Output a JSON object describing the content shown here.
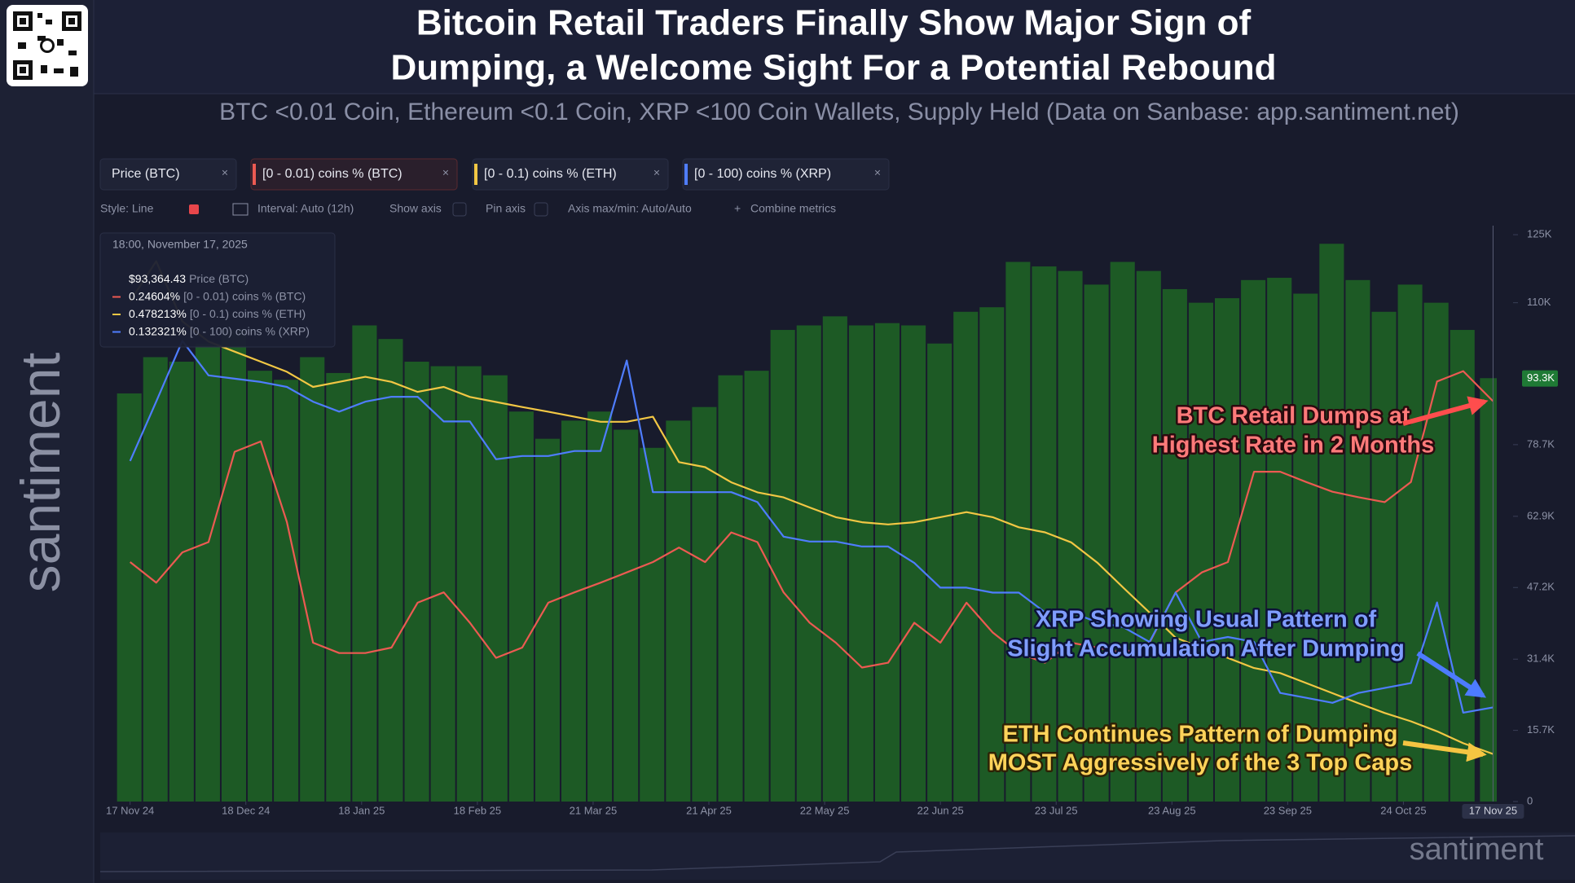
{
  "header": {
    "title_lines": [
      "Bitcoin Retail Traders Finally Show Major Sign of",
      "Dumping, a Welcome Sight For a Potential Rebound"
    ],
    "subtitle": "BTC <0.01 Coin, Ethereum <0.1 Coin, XRP <100 Coin Wallets, Supply Held (Data on Sanbase: app.santiment.net)",
    "watermark": "santiment"
  },
  "toolbar": [
    "Style: Line",
    "Interval: Auto (12h)",
    "Show axis",
    "Pin axis",
    "Axis max/min: Auto/Auto",
    "Combine metrics"
  ],
  "chart_data": {
    "type": "line",
    "x": [
      "2024-11-17",
      "2024-11-24",
      "2024-12-01",
      "2024-12-08",
      "2024-12-15",
      "2024-12-22",
      "2024-12-29",
      "2025-01-05",
      "2025-01-12",
      "2025-01-19",
      "2025-01-26",
      "2025-02-02",
      "2025-02-09",
      "2025-02-16",
      "2025-02-23",
      "2025-03-02",
      "2025-03-09",
      "2025-03-16",
      "2025-03-23",
      "2025-03-30",
      "2025-04-06",
      "2025-04-13",
      "2025-04-20",
      "2025-04-27",
      "2025-05-04",
      "2025-05-11",
      "2025-05-18",
      "2025-05-25",
      "2025-06-01",
      "2025-06-08",
      "2025-06-15",
      "2025-06-22",
      "2025-06-29",
      "2025-07-06",
      "2025-07-13",
      "2025-07-20",
      "2025-07-27",
      "2025-08-03",
      "2025-08-10",
      "2025-08-17",
      "2025-08-24",
      "2025-08-31",
      "2025-09-07",
      "2025-09-14",
      "2025-09-21",
      "2025-09-28",
      "2025-10-05",
      "2025-10-12",
      "2025-10-19",
      "2025-10-26",
      "2025-11-02",
      "2025-11-09",
      "2025-11-17"
    ],
    "xlim": [
      "2024-11-09",
      "2025-11-18"
    ],
    "xticks": [
      {
        "value": "2024-11-17",
        "label": "17 Nov 24"
      },
      {
        "value": "2024-12-18",
        "label": "18 Dec 24"
      },
      {
        "value": "2025-01-18",
        "label": "18 Jan 25"
      },
      {
        "value": "2025-02-18",
        "label": "18 Feb 25"
      },
      {
        "value": "2025-03-21",
        "label": "21 Mar 25"
      },
      {
        "value": "2025-04-21",
        "label": "21 Apr 25"
      },
      {
        "value": "2025-05-22",
        "label": "22 May 25"
      },
      {
        "value": "2025-06-22",
        "label": "22 Jun 25"
      },
      {
        "value": "2025-07-23",
        "label": "23 Jul 25"
      },
      {
        "value": "2025-08-23",
        "label": "23 Aug 25"
      },
      {
        "value": "2025-09-23",
        "label": "23 Sep 25"
      },
      {
        "value": "2025-10-24",
        "label": "24 Oct 25"
      }
    ],
    "cursor": {
      "value": "2025-11-17",
      "label": "17 Nov 25"
    },
    "ylim": [
      0,
      127000
    ],
    "yticks": [
      0,
      {
        "value": 15700,
        "label": "15.7K"
      },
      {
        "value": 31400,
        "label": "31.4K"
      },
      {
        "value": 47200,
        "label": "47.2K"
      },
      {
        "value": 62900,
        "label": "62.9K"
      },
      {
        "value": 78700,
        "label": "78.7K"
      },
      {
        "value": 110000,
        "label": "110K"
      },
      {
        "value": 125000,
        "label": "125K"
      }
    ],
    "price_marker": {
      "value": 93300,
      "label": "93.3K"
    },
    "grid": false,
    "series": [
      {
        "name": "Price (BTC)",
        "type": "bar",
        "color": "#1d5a25",
        "values": [
          90000,
          98000,
          97000,
          101000,
          104000,
          95000,
          93000,
          98000,
          94500,
          105000,
          102000,
          97000,
          96000,
          96000,
          94000,
          86000,
          80000,
          84000,
          86000,
          82000,
          78000,
          84000,
          87000,
          94000,
          95000,
          104000,
          105000,
          107000,
          105000,
          105500,
          105000,
          101000,
          108000,
          109000,
          119000,
          118000,
          117000,
          114000,
          119000,
          117000,
          113000,
          110000,
          111000,
          115000,
          115500,
          112000,
          123000,
          115000,
          108000,
          114000,
          110000,
          104000,
          93364.43
        ]
      },
      {
        "name": "[0 - 0.01) coins % (BTC)",
        "type": "line",
        "color": "#ec5a52",
        "ylim": [
          0.18,
          0.275
        ],
        "values": [
          0.2195,
          0.2161,
          0.2211,
          0.2228,
          0.2377,
          0.2394,
          0.2261,
          0.2062,
          0.2045,
          0.2045,
          0.2054,
          0.2128,
          0.2145,
          0.2095,
          0.2037,
          0.2054,
          0.2128,
          0.2145,
          0.2161,
          0.2178,
          0.2195,
          0.2219,
          0.2195,
          0.2244,
          0.2228,
          0.2145,
          0.2095,
          0.2062,
          0.2021,
          0.2029,
          0.2095,
          0.2062,
          0.2128,
          0.2079,
          0.2045,
          0.2029,
          0.2062,
          0.2054,
          0.2045,
          0.2062,
          0.2145,
          0.2178,
          0.2195,
          0.2344,
          0.2344,
          0.2327,
          0.2311,
          0.2302,
          0.2294,
          0.2327,
          0.2493,
          0.251,
          0.24604
        ]
      },
      {
        "name": "[0 - 0.1) coins % (ETH)",
        "type": "line",
        "color": "#f2c744",
        "ylim": [
          0.465,
          0.625
        ],
        "values": [
          0.604,
          0.6151,
          0.5984,
          0.5928,
          0.59,
          0.5872,
          0.5844,
          0.5802,
          0.5816,
          0.583,
          0.5816,
          0.5788,
          0.5802,
          0.5774,
          0.576,
          0.5746,
          0.5733,
          0.5719,
          0.5705,
          0.5705,
          0.5719,
          0.5593,
          0.5579,
          0.5537,
          0.5509,
          0.5495,
          0.5467,
          0.544,
          0.5426,
          0.542,
          0.5426,
          0.544,
          0.5454,
          0.544,
          0.5412,
          0.5398,
          0.537,
          0.5314,
          0.5244,
          0.5175,
          0.5105,
          0.5077,
          0.5049,
          0.5021,
          0.5007,
          0.4979,
          0.4951,
          0.4923,
          0.4896,
          0.4873,
          0.4845,
          0.4812,
          0.478213
        ]
      },
      {
        "name": "[0 - 100) coins % (XRP)",
        "type": "line",
        "color": "#4f7dff",
        "ylim": [
          0.1266,
          0.1616
        ],
        "values": [
          0.1473,
          0.1509,
          0.1546,
          0.1525,
          0.1523,
          0.1521,
          0.1518,
          0.1509,
          0.1503,
          0.1509,
          0.1512,
          0.1512,
          0.1497,
          0.1497,
          0.1474,
          0.1476,
          0.1476,
          0.1479,
          0.1479,
          0.1534,
          0.1454,
          0.1454,
          0.1454,
          0.1454,
          0.1448,
          0.1427,
          0.1424,
          0.1424,
          0.1421,
          0.1421,
          0.1411,
          0.1396,
          0.1396,
          0.1393,
          0.1393,
          0.1381,
          0.1381,
          0.1375,
          0.1372,
          0.1363,
          0.1393,
          0.1363,
          0.1366,
          0.1363,
          0.1332,
          0.1329,
          0.1326,
          0.1332,
          0.1335,
          0.1338,
          0.1387,
          0.132,
          0.132321
        ]
      }
    ],
    "tooltip": {
      "date": "18:00, November 17, 2025",
      "labels": [
        "$93,364.43",
        "0.24604%",
        "0.478213%",
        "0.132321%"
      ]
    },
    "annotations": [
      {
        "lines": [
          "BTC Retail Dumps at",
          "Highest Rate in 2 Months"
        ]
      },
      {
        "lines": [
          "XRP Showing Usual Pattern of",
          "Slight Accumulation After Dumping"
        ]
      },
      {
        "lines": [
          "ETH Continues Pattern of Dumping",
          "MOST Aggressively of the 3 Top Caps"
        ]
      }
    ]
  }
}
